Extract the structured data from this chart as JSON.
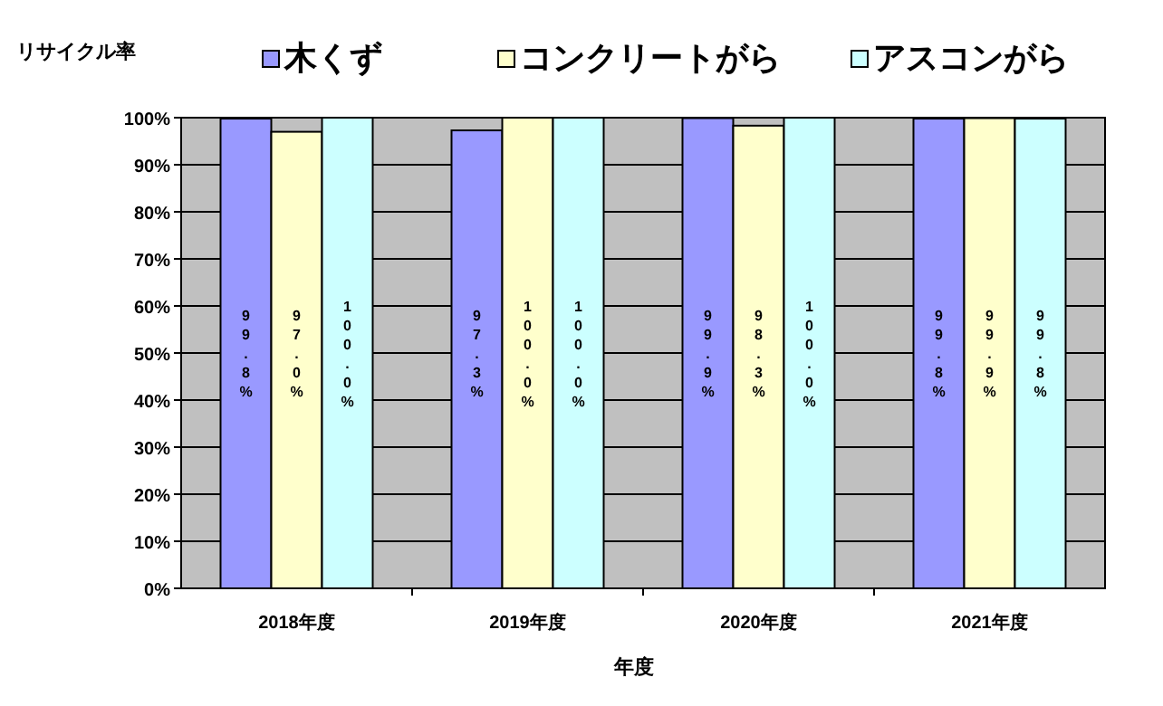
{
  "chart_data": {
    "type": "bar",
    "ylabel": "リサイクル率",
    "xlabel": "年度",
    "categories": [
      "2018年度",
      "2019年度",
      "2020年度",
      "2021年度"
    ],
    "series": [
      {
        "name": "木くず",
        "color": "#9999ff",
        "values": [
          99.8,
          97.3,
          99.9,
          99.8
        ],
        "value_labels": [
          "99.8%",
          "97.3%",
          "99.9%",
          "99.8%"
        ]
      },
      {
        "name": "コンクリートがら",
        "color": "#ffffcc",
        "values": [
          97.0,
          100.0,
          98.3,
          99.9
        ],
        "value_labels": [
          "97.0%",
          "100.0%",
          "98.3%",
          "99.9%"
        ]
      },
      {
        "name": "アスコンがら",
        "color": "#ccffff",
        "values": [
          100.0,
          100.0,
          100.0,
          99.8
        ],
        "value_labels": [
          "100.0%",
          "100.0%",
          "100.0%",
          "99.8%"
        ]
      }
    ],
    "ylim": [
      0,
      100
    ],
    "yticks": [
      {
        "value": 0,
        "label": "0%"
      },
      {
        "value": 10,
        "label": "10%"
      },
      {
        "value": 20,
        "label": "20%"
      },
      {
        "value": 30,
        "label": "30%"
      },
      {
        "value": 40,
        "label": "40%"
      },
      {
        "value": 50,
        "label": "50%"
      },
      {
        "value": 60,
        "label": "60%"
      },
      {
        "value": 70,
        "label": "70%"
      },
      {
        "value": 80,
        "label": "80%"
      },
      {
        "value": 90,
        "label": "90%"
      },
      {
        "value": 100,
        "label": "100%"
      }
    ],
    "grid": "y",
    "legend": "top"
  }
}
